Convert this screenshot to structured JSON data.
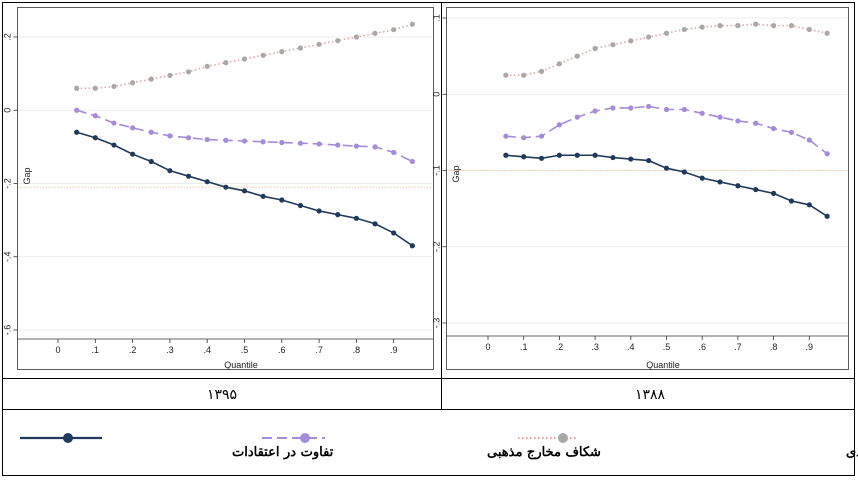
{
  "chart_data": [
    {
      "type": "line",
      "caption": "۱۳۹۵",
      "xlabel": "Quantile",
      "ylabel": "Gap",
      "xlim": [
        0,
        1
      ],
      "ylim": [
        -0.6,
        0.25
      ],
      "xticks": [
        0,
        0.1,
        0.2,
        0.3,
        0.4,
        0.5,
        0.6,
        0.7,
        0.8,
        0.9
      ],
      "xtick_labels": [
        "0",
        ".1",
        ".2",
        ".3",
        ".4",
        ".5",
        ".6",
        ".7",
        ".8",
        ".9"
      ],
      "yticks": [
        0.2,
        0,
        -0.2,
        -0.4,
        -0.6
      ],
      "ytick_labels": [
        ".2",
        "0",
        "-.2",
        "-.4",
        "-.6"
      ],
      "grid": true,
      "x": [
        0.05,
        0.1,
        0.15,
        0.2,
        0.25,
        0.3,
        0.35,
        0.4,
        0.45,
        0.5,
        0.55,
        0.6,
        0.65,
        0.7,
        0.75,
        0.8,
        0.85,
        0.9,
        0.95
      ],
      "series": [
        {
          "name": "تفاوت در ویژگی‌های اجتماعی -اقتصادی",
          "style": "dotted",
          "values": [
            0.06,
            0.06,
            0.065,
            0.075,
            0.085,
            0.095,
            0.105,
            0.12,
            0.13,
            0.14,
            0.15,
            0.16,
            0.17,
            0.18,
            0.19,
            0.2,
            0.21,
            0.22,
            0.235
          ]
        },
        {
          "name": "شکاف مخارج مذهبی",
          "style": "dashed",
          "values": [
            0.0,
            -0.015,
            -0.035,
            -0.048,
            -0.06,
            -0.07,
            -0.075,
            -0.08,
            -0.082,
            -0.084,
            -0.086,
            -0.088,
            -0.09,
            -0.092,
            -0.095,
            -0.098,
            -0.1,
            -0.115,
            -0.14
          ]
        },
        {
          "name": "تفاوت در اعتقادات",
          "style": "solid",
          "values": [
            -0.06,
            -0.075,
            -0.095,
            -0.12,
            -0.14,
            -0.165,
            -0.18,
            -0.195,
            -0.21,
            -0.22,
            -0.235,
            -0.245,
            -0.26,
            -0.275,
            -0.285,
            -0.295,
            -0.31,
            -0.335,
            -0.37
          ]
        }
      ],
      "reference_lines": [
        -0.21
      ]
    },
    {
      "type": "line",
      "caption": "۱۳۸۸",
      "xlabel": "Quantile",
      "ylabel": "Gap",
      "xlim": [
        0,
        1
      ],
      "ylim": [
        -0.31,
        0.105
      ],
      "xticks": [
        0,
        0.1,
        0.2,
        0.3,
        0.4,
        0.5,
        0.6,
        0.7,
        0.8,
        0.9
      ],
      "xtick_labels": [
        "0",
        ".1",
        ".2",
        ".3",
        ".4",
        ".5",
        ".6",
        ".7",
        ".8",
        ".9"
      ],
      "yticks": [
        0.1,
        0,
        -0.1,
        -0.2,
        -0.3
      ],
      "ytick_labels": [
        ".1",
        "0",
        "-.1",
        "-.2",
        "-.3"
      ],
      "grid": true,
      "x": [
        0.05,
        0.1,
        0.15,
        0.2,
        0.25,
        0.3,
        0.35,
        0.4,
        0.45,
        0.5,
        0.55,
        0.6,
        0.65,
        0.7,
        0.75,
        0.8,
        0.85,
        0.9,
        0.95
      ],
      "series": [
        {
          "name": "تفاوت در ویژگی‌های اجتماعی -اقتصادی",
          "style": "dotted",
          "values": [
            0.025,
            0.025,
            0.03,
            0.04,
            0.05,
            0.06,
            0.065,
            0.07,
            0.075,
            0.08,
            0.085,
            0.088,
            0.09,
            0.09,
            0.092,
            0.09,
            0.09,
            0.085,
            0.08
          ]
        },
        {
          "name": "شکاف مخارج مذهبی",
          "style": "dashed",
          "values": [
            -0.055,
            -0.057,
            -0.055,
            -0.04,
            -0.03,
            -0.022,
            -0.018,
            -0.018,
            -0.016,
            -0.02,
            -0.02,
            -0.025,
            -0.03,
            -0.035,
            -0.038,
            -0.045,
            -0.05,
            -0.06,
            -0.078
          ]
        },
        {
          "name": "تفاوت در اعتقادات",
          "style": "solid",
          "values": [
            -0.08,
            -0.082,
            -0.084,
            -0.08,
            -0.08,
            -0.08,
            -0.083,
            -0.085,
            -0.087,
            -0.097,
            -0.102,
            -0.11,
            -0.115,
            -0.12,
            -0.125,
            -0.13,
            -0.14,
            -0.145,
            -0.16
          ]
        }
      ],
      "reference_lines": [
        -0.1
      ]
    }
  ],
  "legend": {
    "items": [
      {
        "label": "تفاوت در ویژگی‌های اجتماعی -اقتصادی",
        "style": "dotted",
        "color": "#e8a3a3"
      },
      {
        "label": "شکاف مخارج مذهبی",
        "style": "dashed",
        "color": "#a58bd8"
      },
      {
        "label": "تفاوت در اعتقادات",
        "style": "solid",
        "color": "#1f3a5a"
      }
    ]
  },
  "colors": {
    "socio_line": "#e8a3a3",
    "socio_marker": "#a8a8a8",
    "religious": "#a58bd8",
    "beliefs": "#1f3a5a",
    "ref_line": "#e8c9a8",
    "grid": "#e6e6e6",
    "axis": "#333333"
  }
}
